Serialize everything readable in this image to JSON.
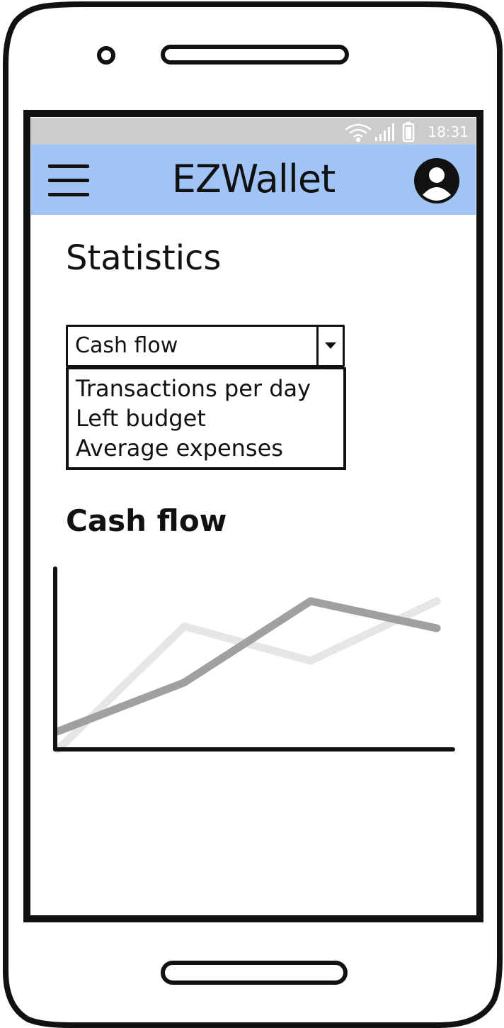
{
  "status_bar": {
    "time": "18:31"
  },
  "app_bar": {
    "title": "EZWallet"
  },
  "page": {
    "title": "Statistics"
  },
  "stat_selector": {
    "selected": "Cash flow",
    "options": [
      "Transactions per day",
      "Left budget",
      "Average expenses"
    ]
  },
  "section": {
    "title": "Cash flow"
  },
  "colors": {
    "app_bar": "#a0c4f6",
    "status_bar": "#cccccc",
    "series_dark": "#a0a0a0",
    "series_light": "#e6e6e6"
  },
  "chart_data": {
    "type": "line",
    "x": [
      0,
      1,
      2,
      3
    ],
    "series": [
      {
        "values": [
          0.1,
          0.37,
          0.82,
          0.67
        ]
      },
      {
        "values": [
          0.0,
          0.68,
          0.49,
          0.82
        ]
      }
    ],
    "grid": false,
    "xlabel": "",
    "ylabel": ""
  }
}
